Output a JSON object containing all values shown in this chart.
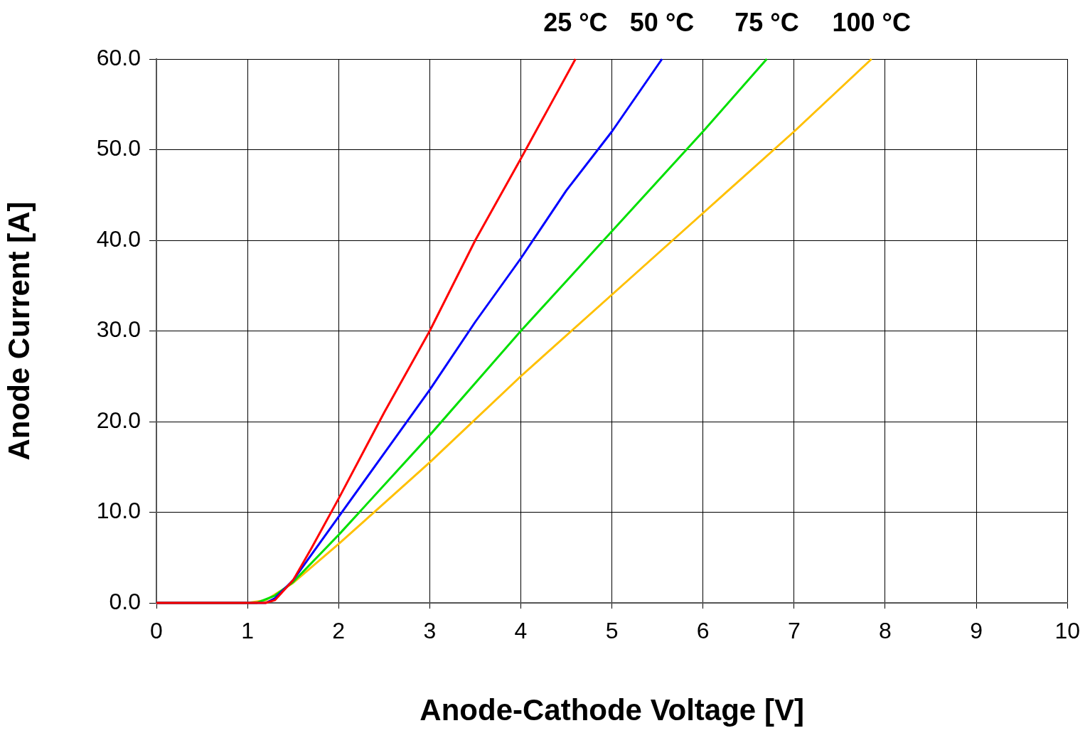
{
  "chart_data": {
    "type": "line",
    "xlabel": "Anode-Cathode Voltage [V]",
    "ylabel": "Anode Current [A]",
    "xlim": [
      0,
      10
    ],
    "xticks": [
      0,
      1,
      2,
      3,
      4,
      5,
      6,
      7,
      8,
      9,
      10
    ],
    "ylim": [
      0,
      60
    ],
    "yticks": [
      {
        "value": 0,
        "label": "0.0"
      },
      {
        "value": 10,
        "label": "10.0"
      },
      {
        "value": 20,
        "label": "20.0"
      },
      {
        "value": 30,
        "label": "30.0"
      },
      {
        "value": 40,
        "label": "40.0"
      },
      {
        "value": 50,
        "label": "50.0"
      },
      {
        "value": 60,
        "label": "60.0"
      }
    ],
    "grid": true,
    "legend": false,
    "marker": "none",
    "line_style": "solid",
    "series": [
      {
        "name": "25 °C",
        "color": "#ff0000",
        "x": [
          0,
          1,
          1.2,
          1.3,
          1.5,
          1.7,
          2,
          2.5,
          3,
          3.5,
          4,
          4.3,
          4.6
        ],
        "values": [
          0,
          0,
          0,
          0.3,
          2.5,
          6,
          11.5,
          21,
          30,
          40,
          49,
          54.5,
          60
        ]
      },
      {
        "name": "50 °C",
        "color": "#0000ff",
        "x": [
          0,
          1.2,
          1.3,
          1.5,
          2,
          2.5,
          3,
          3.5,
          4,
          4.5,
          5,
          5.55
        ],
        "values": [
          0,
          0,
          0.5,
          2.5,
          9.5,
          16.5,
          23.5,
          31,
          38,
          45.5,
          52,
          60
        ]
      },
      {
        "name": "75 °C",
        "color": "#00e000",
        "x": [
          0,
          1.1,
          1.3,
          1.5,
          2,
          3,
          4,
          5,
          6,
          6.7
        ],
        "values": [
          0,
          0,
          0.8,
          2.3,
          7.5,
          18.5,
          30,
          41,
          52,
          60
        ]
      },
      {
        "name": "100 °C",
        "color": "#ffc000",
        "x": [
          0,
          1,
          1.2,
          1.5,
          2,
          3,
          4,
          5,
          6,
          7,
          7.85
        ],
        "values": [
          0,
          0,
          0.3,
          2.2,
          6.5,
          15.5,
          25,
          34,
          43,
          52,
          60
        ]
      }
    ]
  }
}
